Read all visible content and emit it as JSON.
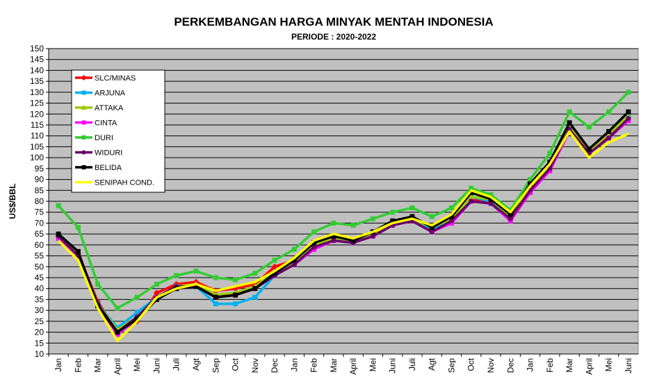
{
  "chart_data": {
    "type": "line",
    "title": "PERKEMBANGAN HARGA MINYAK MENTAH INDONESIA",
    "subtitle": "PERIODE  : 2020-2022",
    "ylabel": "US$/BBL",
    "xlabel": "",
    "ylim": [
      10,
      150
    ],
    "ytick_step": 5,
    "grid": true,
    "legend_position": "top-left",
    "plot_background": "#c0c0c0",
    "categories": [
      "Jan",
      "Feb",
      "Mar",
      "April",
      "Mei",
      "Juni",
      "Juli",
      "Agt",
      "Sep",
      "Oct",
      "Nov",
      "Dec",
      "Jan",
      "Feb",
      "Mar",
      "April",
      "Mei",
      "Juni",
      "Juli",
      "Agt",
      "Sep",
      "Oct",
      "Nov",
      "Dec",
      "Jan",
      "Feb",
      "Mar",
      "April",
      "Mei",
      "Juni"
    ],
    "series": [
      {
        "name": "SLC/MINAS",
        "color": "#ff0000",
        "marker": "diamond",
        "values": [
          64,
          56,
          34,
          20,
          25,
          38,
          42,
          43,
          39,
          40,
          42,
          50,
          53,
          60,
          64,
          62,
          65,
          70,
          72,
          68,
          72,
          81,
          80,
          73,
          86,
          96,
          113,
          102,
          110,
          118
        ]
      },
      {
        "name": "ARJUNA",
        "color": "#00b0f0",
        "marker": "square",
        "values": [
          64,
          55,
          33,
          22,
          29,
          36,
          41,
          41,
          33,
          33,
          36,
          46,
          51,
          58,
          62,
          61,
          65,
          70,
          72,
          67,
          71,
          82,
          80,
          73,
          86,
          96,
          114,
          103,
          111,
          119
        ]
      },
      {
        "name": "ATTAKA",
        "color": "#99cc00",
        "marker": "triangle",
        "values": [
          65,
          56,
          33,
          21,
          27,
          36,
          41,
          42,
          37,
          38,
          41,
          47,
          52,
          60,
          63,
          62,
          65,
          70,
          72,
          68,
          72,
          82,
          81,
          73,
          86,
          97,
          115,
          103,
          111,
          119
        ]
      },
      {
        "name": "CINTA",
        "color": "#ff00ff",
        "marker": "square",
        "values": [
          63,
          55,
          32,
          19,
          26,
          36,
          40,
          41,
          36,
          37,
          40,
          46,
          51,
          58,
          62,
          61,
          64,
          69,
          71,
          66,
          70,
          80,
          79,
          71,
          84,
          94,
          112,
          102,
          109,
          117
        ]
      },
      {
        "name": "DURI",
        "color": "#33cc33",
        "marker": "square",
        "values": [
          78,
          68,
          42,
          31,
          36,
          42,
          46,
          48,
          45,
          44,
          47,
          53,
          58,
          66,
          70,
          69,
          72,
          75,
          77,
          73,
          77,
          86,
          83,
          76,
          90,
          102,
          121,
          114,
          121,
          130
        ]
      },
      {
        "name": "WIDURI",
        "color": "#660066",
        "marker": "circle",
        "values": [
          64,
          55,
          33,
          20,
          27,
          36,
          41,
          41,
          36,
          37,
          40,
          46,
          51,
          59,
          62,
          61,
          64,
          69,
          71,
          66,
          71,
          80,
          79,
          72,
          85,
          95,
          113,
          102,
          109,
          118
        ]
      },
      {
        "name": "BELIDA",
        "color": "#000000",
        "marker": "square",
        "values": [
          65,
          57,
          32,
          20,
          26,
          35,
          40,
          41,
          36,
          37,
          40,
          47,
          53,
          61,
          64,
          62,
          66,
          71,
          73,
          68,
          73,
          84,
          81,
          74,
          88,
          98,
          116,
          104,
          112,
          121
        ]
      },
      {
        "name": "SENIPAH COND.",
        "color": "#ffff00",
        "marker": "none",
        "values": [
          62,
          53,
          31,
          16,
          25,
          36,
          40,
          42,
          39,
          41,
          43,
          48,
          54,
          62,
          65,
          63,
          66,
          70,
          72,
          69,
          74,
          85,
          82,
          75,
          87,
          97,
          112,
          100,
          107,
          111
        ]
      }
    ]
  }
}
